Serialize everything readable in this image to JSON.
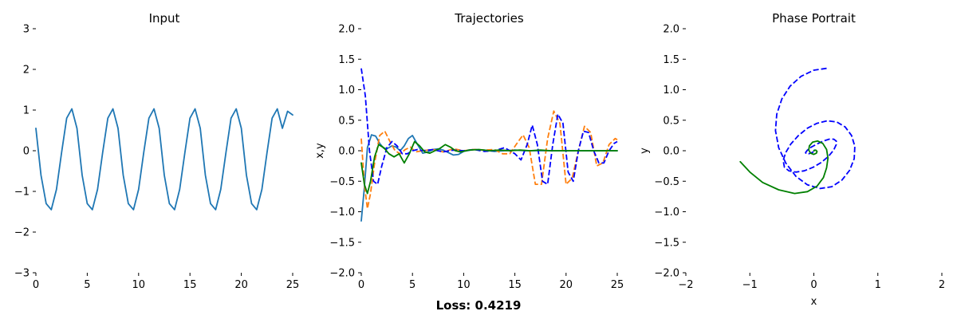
{
  "figure": {
    "loss_text": "Loss: 0.4219"
  },
  "chart_data": [
    {
      "type": "line",
      "title": "Input",
      "xlabel": "",
      "ylabel": "",
      "xlim": [
        0,
        25
      ],
      "ylim": [
        -3,
        3
      ],
      "xticks": [
        0,
        5,
        10,
        15,
        20,
        25
      ],
      "yticks": [
        -3,
        -2,
        -1,
        0,
        1,
        2,
        3
      ],
      "ytick_labels": [
        "−3",
        "−2",
        "−1",
        "0",
        "1",
        "2",
        "3"
      ],
      "grid": false,
      "series": [
        {
          "color": "#1f77b4",
          "style": "solid",
          "x": [
            0,
            0.5,
            1,
            1.5,
            2,
            2.5,
            3,
            3.5,
            4,
            4.5,
            5,
            5.5,
            6,
            6.5,
            7,
            7.5,
            8,
            8.5,
            9,
            9.5,
            10,
            10.5,
            11,
            11.5,
            12,
            12.5,
            13,
            13.5,
            14,
            14.5,
            15,
            15.5,
            16,
            16.5,
            17,
            17.5,
            18,
            18.5,
            19,
            19.5,
            20,
            20.5,
            21,
            21.5,
            22,
            22.5,
            23,
            23.5,
            24,
            24.5,
            25
          ],
          "y": [
            0.55,
            -0.6,
            -1.3,
            -1.45,
            -0.95,
            -0.05,
            0.8,
            1.03,
            0.55,
            -0.6,
            -1.3,
            -1.45,
            -0.95,
            -0.05,
            0.8,
            1.03,
            0.55,
            -0.6,
            -1.3,
            -1.45,
            -0.95,
            -0.05,
            0.8,
            1.03,
            0.55,
            -0.6,
            -1.3,
            -1.45,
            -0.95,
            -0.05,
            0.8,
            1.03,
            0.55,
            -0.6,
            -1.3,
            -1.45,
            -0.95,
            -0.05,
            0.8,
            1.03,
            0.55,
            -0.6,
            -1.3,
            -1.45,
            -0.95,
            -0.05,
            0.8,
            1.03,
            0.55,
            0.97,
            0.88
          ]
        }
      ]
    },
    {
      "type": "line",
      "title": "Trajectories",
      "xlabel": "",
      "ylabel": "x,y",
      "xlim": [
        0,
        25
      ],
      "ylim": [
        -2,
        2
      ],
      "xticks": [
        0,
        5,
        10,
        15,
        20,
        25
      ],
      "yticks": [
        -2,
        -1.5,
        -1,
        -0.5,
        0,
        0.5,
        1,
        1.5,
        2
      ],
      "ytick_labels": [
        "−2.0",
        "−1.5",
        "−1.0",
        "−0.5",
        "0.0",
        "0.5",
        "1.0",
        "1.5",
        "2.0"
      ],
      "grid": false,
      "series": [
        {
          "color": "#1f77b4",
          "style": "solid",
          "x": [
            0,
            0.3,
            0.6,
            1,
            1.4,
            1.8,
            2.2,
            2.6,
            3,
            3.4,
            3.8,
            4.2,
            4.6,
            5,
            5.5,
            6,
            6.5,
            7,
            7.5,
            8,
            8.5,
            9,
            9.5,
            10,
            11,
            12,
            13,
            14,
            15,
            16,
            17,
            18,
            19,
            20,
            21,
            22,
            23,
            24,
            25
          ],
          "y": [
            -1.15,
            -0.6,
            0.05,
            0.26,
            0.24,
            0.12,
            0.04,
            0.04,
            0.08,
            0.06,
            0.0,
            0.08,
            0.2,
            0.25,
            0.1,
            -0.04,
            -0.02,
            0.02,
            0.03,
            0.01,
            -0.03,
            -0.07,
            -0.06,
            -0.01,
            0.02,
            0.01,
            -0.01,
            0.0,
            0.01,
            0.0,
            0.0,
            0.0,
            0.0,
            0.0,
            0.0,
            0.0,
            0.0,
            0.0,
            0.0
          ]
        },
        {
          "color": "#ff7f0e",
          "style": "dashed",
          "x": [
            0,
            0.3,
            0.6,
            0.9,
            1.3,
            1.8,
            2.3,
            2.8,
            3.3,
            3.8,
            4.3,
            4.8,
            5.3,
            6,
            7,
            8,
            9,
            10,
            11,
            12,
            13,
            13.8,
            14.5,
            15.2,
            15.8,
            16.4,
            17,
            17.6,
            18.2,
            18.8,
            19.4,
            20,
            20.6,
            21.2,
            21.8,
            22.4,
            23,
            23.6,
            24.2,
            24.8,
            25
          ],
          "y": [
            0.2,
            -0.55,
            -0.95,
            -0.7,
            -0.2,
            0.25,
            0.32,
            0.15,
            0.0,
            -0.05,
            0.02,
            0.06,
            -0.02,
            0.0,
            0.02,
            -0.02,
            0.03,
            0.0,
            0.02,
            0.01,
            0.02,
            -0.05,
            -0.05,
            0.12,
            0.26,
            0.05,
            -0.55,
            -0.55,
            0.2,
            0.65,
            0.45,
            -0.55,
            -0.45,
            0.0,
            0.4,
            0.3,
            -0.25,
            -0.2,
            0.1,
            0.2,
            0.18
          ]
        },
        {
          "color": "#0000ff",
          "style": "dashed",
          "x": [
            0,
            0.4,
            0.8,
            1.2,
            1.6,
            2,
            2.5,
            3,
            3.5,
            4,
            4.5,
            5,
            5.5,
            6,
            7,
            8,
            9,
            10,
            11,
            12,
            13,
            14,
            15,
            15.6,
            16.2,
            16.7,
            17.2,
            17.7,
            18.2,
            18.7,
            19.2,
            19.7,
            20.2,
            20.7,
            21.2,
            21.7,
            22.2,
            22.7,
            23.2,
            23.7,
            24.2,
            24.7,
            25
          ],
          "y": [
            1.35,
            0.9,
            0.0,
            -0.5,
            -0.55,
            -0.25,
            0.05,
            0.15,
            0.08,
            -0.05,
            -0.05,
            0.0,
            0.02,
            0.0,
            0.02,
            -0.02,
            0.01,
            0.0,
            0.02,
            -0.01,
            0.0,
            0.05,
            -0.05,
            -0.15,
            0.1,
            0.42,
            0.1,
            -0.5,
            -0.55,
            0.1,
            0.6,
            0.45,
            -0.35,
            -0.5,
            0.0,
            0.32,
            0.3,
            0.0,
            -0.2,
            -0.2,
            0.0,
            0.12,
            0.15
          ]
        },
        {
          "color": "#008000",
          "style": "solid",
          "x": [
            0,
            0.3,
            0.6,
            0.9,
            1.3,
            1.7,
            2.2,
            2.7,
            3.2,
            3.7,
            4.2,
            4.7,
            5.2,
            5.7,
            6.2,
            6.7,
            7.2,
            7.7,
            8.2,
            8.7,
            9.2,
            9.7,
            10.5,
            11.5,
            12.5,
            13.5,
            14.5,
            15.5,
            16.5,
            17.5,
            18.5,
            19.5,
            20.5,
            21.5,
            22.5,
            23.5,
            24.5,
            25
          ],
          "y": [
            -0.2,
            -0.55,
            -0.7,
            -0.5,
            -0.1,
            0.1,
            0.05,
            -0.05,
            -0.1,
            -0.05,
            -0.2,
            -0.05,
            0.15,
            0.08,
            -0.02,
            -0.04,
            0.0,
            0.04,
            0.1,
            0.06,
            0.0,
            -0.02,
            0.01,
            0.02,
            0.0,
            0.01,
            0.0,
            0.01,
            0.0,
            0.01,
            0.0,
            0.0,
            0.0,
            0.0,
            0.0,
            0.0,
            0.0,
            0.0
          ]
        }
      ]
    },
    {
      "type": "line",
      "title": "Phase Portrait",
      "xlabel": "x",
      "ylabel": "y",
      "xlim": [
        -2,
        2
      ],
      "ylim": [
        -2,
        2
      ],
      "xticks": [
        -2,
        -1,
        0,
        1,
        2
      ],
      "xtick_labels": [
        "−2",
        "−1",
        "0",
        "1",
        "2"
      ],
      "yticks": [
        -2,
        -1.5,
        -1,
        -0.5,
        0,
        0.5,
        1,
        1.5,
        2
      ],
      "ytick_labels": [
        "−2.0",
        "−1.5",
        "−1.0",
        "−0.5",
        "0.0",
        "0.5",
        "1.0",
        "1.5",
        "2.0"
      ],
      "grid": false,
      "series": [
        {
          "color": "#0000ff",
          "style": "dashed",
          "x": [
            0.2,
            0.0,
            -0.2,
            -0.37,
            -0.5,
            -0.58,
            -0.6,
            -0.55,
            -0.44,
            -0.28,
            -0.1,
            0.1,
            0.28,
            0.44,
            0.56,
            0.63,
            0.64,
            0.59,
            0.49,
            0.36,
            0.21,
            0.05,
            -0.1,
            -0.24,
            -0.36,
            -0.44,
            -0.48,
            -0.46,
            -0.39,
            -0.28,
            -0.15,
            -0.01,
            0.12,
            0.23,
            0.31,
            0.35,
            0.35,
            0.31,
            0.24,
            0.15,
            0.05,
            -0.04,
            -0.1,
            -0.13,
            -0.12,
            -0.08,
            -0.03,
            0.01,
            0.02,
            0.01,
            0.0
          ],
          "y": [
            1.35,
            1.32,
            1.22,
            1.06,
            0.85,
            0.6,
            0.33,
            0.05,
            -0.2,
            -0.42,
            -0.56,
            -0.62,
            -0.59,
            -0.48,
            -0.32,
            -0.13,
            0.07,
            0.25,
            0.39,
            0.47,
            0.49,
            0.45,
            0.37,
            0.25,
            0.11,
            -0.03,
            -0.16,
            -0.27,
            -0.33,
            -0.35,
            -0.33,
            -0.27,
            -0.19,
            -0.09,
            0.01,
            0.1,
            0.16,
            0.19,
            0.19,
            0.16,
            0.11,
            0.06,
            0.01,
            -0.03,
            -0.05,
            -0.05,
            -0.03,
            -0.01,
            0.0,
            0.01,
            0.0
          ]
        },
        {
          "color": "#008000",
          "style": "solid",
          "x": [
            -1.15,
            -1.0,
            -0.8,
            -0.55,
            -0.3,
            -0.1,
            0.05,
            0.15,
            0.2,
            0.22,
            0.2,
            0.14,
            0.06,
            -0.02,
            -0.07,
            -0.08,
            -0.05,
            0.0,
            0.04,
            0.05,
            0.03,
            0.0
          ],
          "y": [
            -0.18,
            -0.35,
            -0.52,
            -0.64,
            -0.7,
            -0.67,
            -0.58,
            -0.44,
            -0.28,
            -0.12,
            0.02,
            0.12,
            0.16,
            0.14,
            0.08,
            0.01,
            -0.04,
            -0.06,
            -0.04,
            -0.01,
            0.01,
            0.0
          ]
        }
      ]
    }
  ]
}
